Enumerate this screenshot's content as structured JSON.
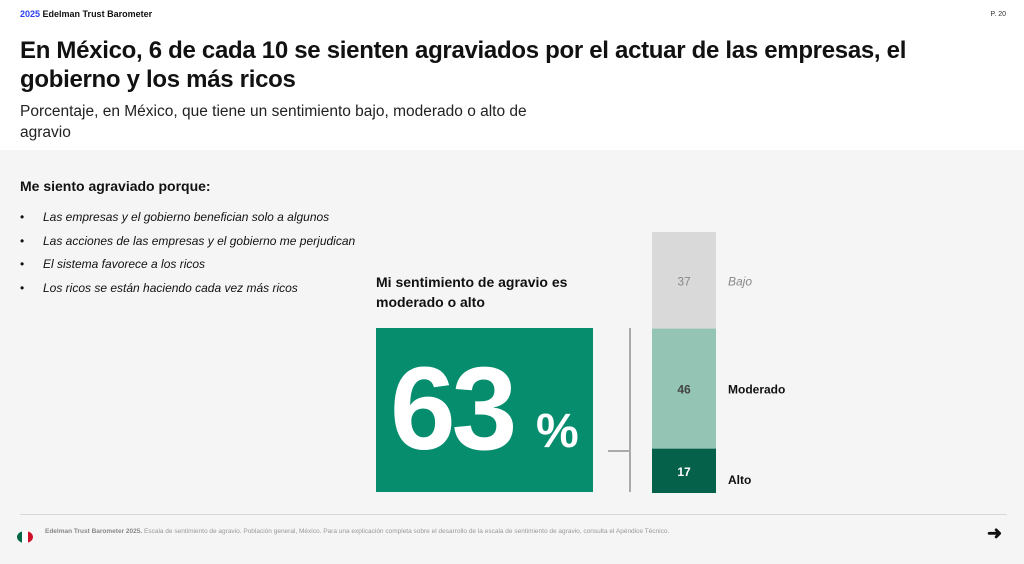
{
  "header": {
    "year": "2025",
    "brand": "Edelman Trust Barometer",
    "page": "P. 20"
  },
  "title": "En México, 6 de cada 10 se sienten agraviados por el actuar de las empresas, el gobierno y los más ricos",
  "subtitle": "Porcentaje, en México, que tiene un sentimiento bajo, moderado o alto de agravio",
  "lead": "Me siento agraviado porque:",
  "bullets": [
    "Las empresas y el gobierno benefician solo a algunos",
    "Las acciones de las empresas y el gobierno me perjudican",
    "El sistema favorece a los ricos",
    "Los ricos se están haciendo cada vez más ricos"
  ],
  "highlight": {
    "label": "Mi sentimiento de agravio es moderado o alto",
    "value": "63",
    "unit": "%",
    "color": "#058d6e"
  },
  "chart_data": {
    "type": "bar",
    "stacked": true,
    "categories": [
      "Bajo",
      "Moderado",
      "Alto"
    ],
    "values": [
      37,
      46,
      17
    ],
    "colors": [
      "#d9d9d9",
      "#93c4b4",
      "#05614a"
    ],
    "ylim": [
      0,
      100
    ]
  },
  "footer": {
    "source_bold": "Edelman Trust Barometer 2025.",
    "source": " Escala de sentimiento de agravio. Población general, México. Para una explicación completa sobre el desarrollo de la escala de sentimiento de agravio, consulta el Apéndice Técnico.",
    "arrow_icon": "arrow-right-icon",
    "flag_icon": "mexico-flag-icon"
  }
}
